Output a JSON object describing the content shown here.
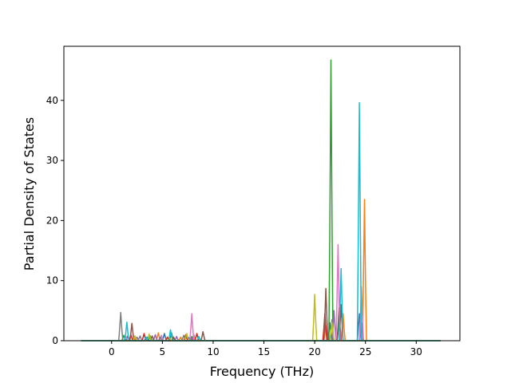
{
  "chart_data": {
    "type": "line",
    "xlabel": "Frequency (THz)",
    "ylabel": "Partial Density of States",
    "xlim": [
      -4.7,
      34.3
    ],
    "ylim": [
      0,
      49
    ],
    "xticks": [
      0,
      5,
      10,
      15,
      20,
      25,
      30
    ],
    "yticks": [
      0,
      10,
      20,
      30,
      40
    ],
    "x_range_of_data": [
      -3,
      32.4
    ],
    "grid": false,
    "legend": "none",
    "colors": [
      "#1f77b4",
      "#ff7f0e",
      "#2ca02c",
      "#d62728",
      "#9467bd",
      "#8c564b",
      "#e377c2",
      "#7f7f7f",
      "#bcbd22",
      "#17becf"
    ],
    "series": [
      {
        "color": "#1f77b4",
        "peaks": [
          [
            1.6,
            0.8
          ],
          [
            3.5,
            0.6
          ],
          [
            5.2,
            1.2
          ],
          [
            7.6,
            0.5
          ],
          [
            21.5,
            3.0
          ],
          [
            24.4,
            4.5
          ]
        ]
      },
      {
        "color": "#ff7f0e",
        "peaks": [
          [
            2.2,
            0.7
          ],
          [
            4.6,
            1.3
          ],
          [
            6.8,
            0.6
          ],
          [
            8.1,
            1.0
          ],
          [
            21.1,
            2.5
          ],
          [
            22.8,
            4.5
          ],
          [
            24.9,
            23.5
          ]
        ]
      },
      {
        "color": "#2ca02c",
        "peaks": [
          [
            1.2,
            0.9
          ],
          [
            3.8,
            0.8
          ],
          [
            5.9,
            1.3
          ],
          [
            7.9,
            0.7
          ],
          [
            21.6,
            46.7
          ],
          [
            22.4,
            3.0
          ]
        ]
      },
      {
        "color": "#d62728",
        "peaks": [
          [
            1.9,
            1.0
          ],
          [
            3.2,
            1.2
          ],
          [
            5.5,
            0.6
          ],
          [
            7.3,
            1.0
          ],
          [
            8.4,
            1.2
          ],
          [
            21.0,
            4.5
          ],
          [
            22.6,
            6.0
          ]
        ]
      },
      {
        "color": "#9467bd",
        "peaks": [
          [
            2.5,
            0.6
          ],
          [
            4.3,
            1.0
          ],
          [
            6.4,
            0.7
          ],
          [
            8.0,
            0.5
          ],
          [
            21.9,
            5.0
          ],
          [
            24.6,
            3.0
          ]
        ]
      },
      {
        "color": "#8c564b",
        "peaks": [
          [
            2.0,
            2.9
          ],
          [
            4.0,
            0.8
          ],
          [
            6.1,
            0.6
          ],
          [
            9.0,
            1.5
          ],
          [
            21.1,
            8.7
          ],
          [
            22.4,
            5.5
          ]
        ]
      },
      {
        "color": "#e377c2",
        "peaks": [
          [
            1.4,
            0.7
          ],
          [
            4.9,
            0.9
          ],
          [
            7.9,
            4.5
          ],
          [
            22.3,
            16.0
          ],
          [
            24.6,
            9.0
          ]
        ]
      },
      {
        "color": "#7f7f7f",
        "peaks": [
          [
            0.9,
            4.7
          ],
          [
            2.8,
            0.8
          ],
          [
            4.8,
            0.6
          ],
          [
            7.1,
            0.9
          ],
          [
            21.7,
            3.5
          ]
        ]
      },
      {
        "color": "#bcbd22",
        "peaks": [
          [
            2.3,
            0.8
          ],
          [
            3.7,
            1.1
          ],
          [
            5.7,
            0.5
          ],
          [
            7.4,
            1.2
          ],
          [
            20.0,
            7.7
          ],
          [
            21.7,
            3.0
          ]
        ]
      },
      {
        "color": "#17becf",
        "peaks": [
          [
            1.5,
            3.1
          ],
          [
            3.4,
            0.6
          ],
          [
            5.8,
            1.8
          ],
          [
            8.6,
            0.7
          ],
          [
            22.6,
            12.0
          ],
          [
            24.4,
            39.6
          ]
        ]
      }
    ]
  }
}
